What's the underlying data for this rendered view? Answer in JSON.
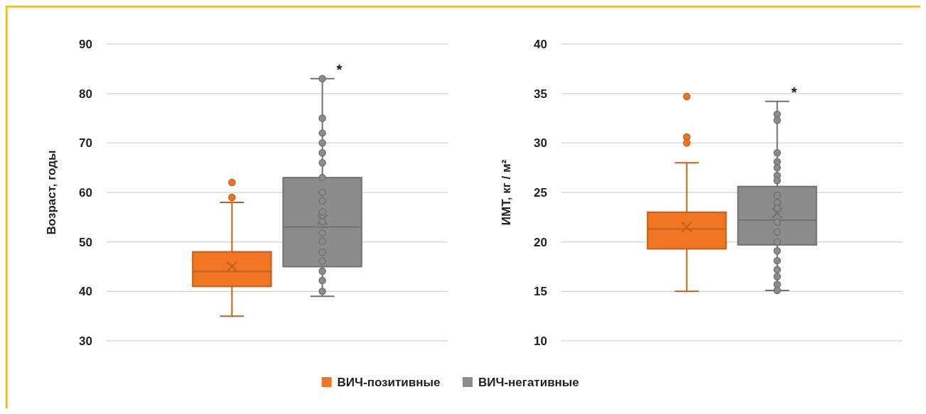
{
  "chart_data": [
    {
      "type": "box",
      "ylabel": "Возраст, годы",
      "categories": [
        null,
        null
      ],
      "ylim": [
        30,
        90
      ],
      "yticks": [
        30,
        40,
        50,
        60,
        70,
        80,
        90
      ],
      "grid": "y",
      "legend": "bottom",
      "annotations": [
        "*"
      ],
      "series": [
        {
          "name": "ВИЧ-позитивные",
          "color": "#f07623",
          "boxes": [
            {
              "low": 35,
              "q1": 41,
              "median": 44,
              "q3": 48,
              "high": 58,
              "mean": 45,
              "outliers": [
                59,
                62
              ]
            },
            null
          ]
        },
        {
          "name": "ВИЧ-негативные",
          "color": "#8c8c8c",
          "boxes": [
            null,
            {
              "low": 39,
              "q1": 45,
              "median": 53,
              "q3": 63,
              "high": 83,
              "mean": 54.5,
              "outliers": [
                83,
                75,
                72,
                70,
                68,
                66,
                63,
                60,
                58.3,
                56,
                54.1,
                51.8,
                50.1,
                47.9,
                46.1,
                44.1,
                42.2,
                40
              ]
            }
          ]
        }
      ]
    },
    {
      "type": "box",
      "ylabel": "ИМТ, кг / м²",
      "categories": [
        null,
        null
      ],
      "ylim": [
        10,
        40
      ],
      "yticks": [
        10,
        15,
        20,
        25,
        30,
        35,
        40
      ],
      "grid": "y",
      "annotations": [
        "*"
      ],
      "series": [
        {
          "color": "#f07623",
          "boxes": [
            {
              "low": 15,
              "q1": 19.3,
              "median": 21.3,
              "q3": 23,
              "high": 28,
              "mean": 21.5,
              "outliers": [
                34.7,
                30.6,
                30
              ]
            },
            null
          ]
        },
        {
          "color": "#8c8c8c",
          "boxes": [
            null,
            {
              "low": 15.1,
              "q1": 19.7,
              "median": 22.2,
              "q3": 25.6,
              "high": 34.2,
              "mean": 22.9,
              "outliers": [
                32.9,
                32.3,
                29,
                28.1,
                27.5,
                26.7,
                26.2,
                24.7,
                24,
                23.4,
                22,
                21,
                20,
                19.1,
                18.1,
                17.2,
                16.5,
                15.7,
                15.1
              ]
            }
          ]
        }
      ]
    }
  ]
}
